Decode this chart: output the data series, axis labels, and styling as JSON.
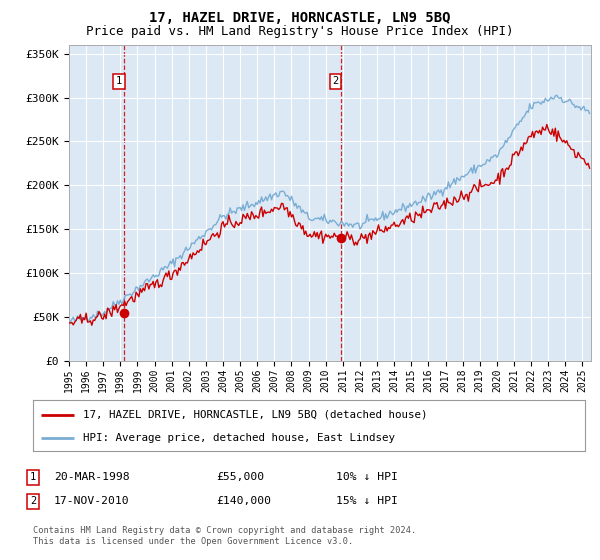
{
  "title": "17, HAZEL DRIVE, HORNCASTLE, LN9 5BQ",
  "subtitle": "Price paid vs. HM Land Registry's House Price Index (HPI)",
  "legend_label_red": "17, HAZEL DRIVE, HORNCASTLE, LN9 5BQ (detached house)",
  "legend_label_blue": "HPI: Average price, detached house, East Lindsey",
  "footnote": "Contains HM Land Registry data © Crown copyright and database right 2024.\nThis data is licensed under the Open Government Licence v3.0.",
  "sale1_date": "20-MAR-1998",
  "sale1_price": "£55,000",
  "sale1_hpi": "10% ↓ HPI",
  "sale2_date": "17-NOV-2010",
  "sale2_price": "£140,000",
  "sale2_hpi": "15% ↓ HPI",
  "sale1_x": 1998.22,
  "sale1_y": 55000,
  "sale2_x": 2010.88,
  "sale2_y": 140000,
  "ylim": [
    0,
    360000
  ],
  "xlim_start": 1995.0,
  "xlim_end": 2025.5,
  "yticks": [
    0,
    50000,
    100000,
    150000,
    200000,
    250000,
    300000,
    350000
  ],
  "ytick_labels": [
    "£0",
    "£50K",
    "£100K",
    "£150K",
    "£200K",
    "£250K",
    "£300K",
    "£350K"
  ],
  "plot_bg": "#dce9f5",
  "red_color": "#cc0000",
  "blue_color": "#7aadd4",
  "grid_color": "#ffffff",
  "title_fontsize": 10,
  "subtitle_fontsize": 9
}
